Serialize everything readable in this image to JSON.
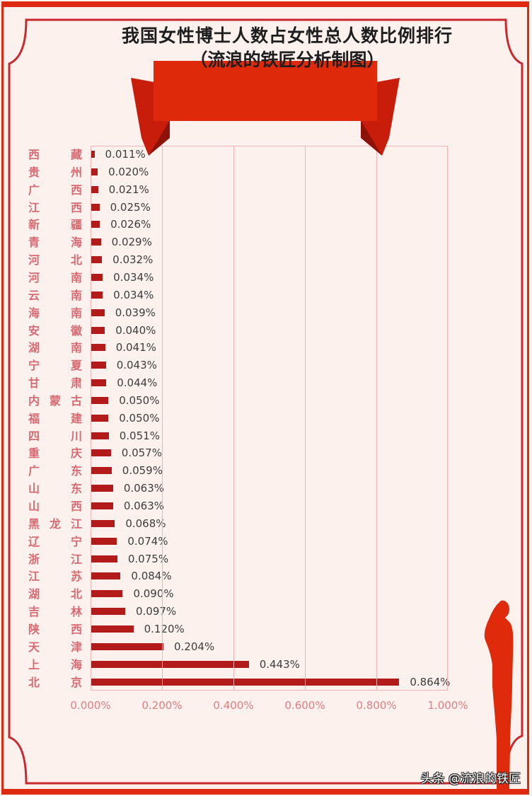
{
  "title": "我国女性博士人数占女性总人数比例排行",
  "subtitle": "（流浪的铁匠分析制图）",
  "watermark": "头条 @流浪的铁匠",
  "colors": {
    "bar": "#b31b1b",
    "frame": "#dd2a10",
    "ribbon": "#de2a0b",
    "category_label": "#d76b72",
    "axis_label": "#e07e84",
    "background": "#fdf1ee"
  },
  "x_axis": {
    "ticks": [
      "0.000%",
      "0.200%",
      "0.400%",
      "0.600%",
      "0.800%",
      "1.000%"
    ]
  },
  "chart_data": {
    "type": "bar",
    "orientation": "horizontal",
    "title": "我国女性博士人数占女性总人数比例排行（流浪的铁匠分析制图）",
    "xlabel": "",
    "ylabel": "",
    "xlim": [
      0,
      1.0
    ],
    "x_tick_labels": [
      "0.000%",
      "0.200%",
      "0.400%",
      "0.600%",
      "0.800%",
      "1.000%"
    ],
    "grid": true,
    "legend": null,
    "unit": "%",
    "categories": [
      "西藏",
      "贵州",
      "广西",
      "江西",
      "新疆",
      "青海",
      "河北",
      "河南",
      "云南",
      "海南",
      "安徽",
      "湖南",
      "宁夏",
      "甘肃",
      "内蒙古",
      "福建",
      "四川",
      "重庆",
      "广东",
      "山东",
      "山西",
      "黑龙江",
      "辽宁",
      "浙江",
      "江苏",
      "湖北",
      "吉林",
      "陕西",
      "天津",
      "上海",
      "北京"
    ],
    "values": [
      0.011,
      0.02,
      0.021,
      0.025,
      0.026,
      0.029,
      0.032,
      0.034,
      0.034,
      0.039,
      0.04,
      0.041,
      0.043,
      0.044,
      0.05,
      0.05,
      0.051,
      0.057,
      0.059,
      0.063,
      0.063,
      0.068,
      0.074,
      0.075,
      0.084,
      0.09,
      0.097,
      0.12,
      0.204,
      0.443,
      0.864
    ],
    "value_labels": [
      "0.011%",
      "0.020%",
      "0.021%",
      "0.025%",
      "0.026%",
      "0.029%",
      "0.032%",
      "0.034%",
      "0.034%",
      "0.039%",
      "0.040%",
      "0.041%",
      "0.043%",
      "0.044%",
      "0.050%",
      "0.050%",
      "0.051%",
      "0.057%",
      "0.059%",
      "0.063%",
      "0.063%",
      "0.068%",
      "0.074%",
      "0.075%",
      "0.084%",
      "0.090%",
      "0.097%",
      "0.120%",
      "0.204%",
      "0.443%",
      "0.864%"
    ]
  }
}
